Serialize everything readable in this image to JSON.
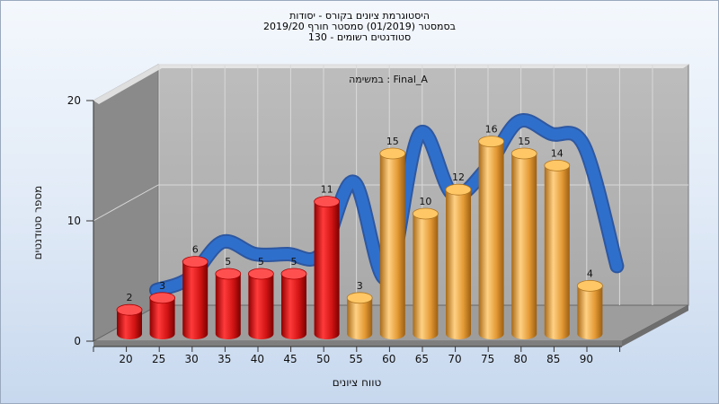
{
  "title_lines": [
    "היסטוגרמת ציונים בקורס - יסודות",
    "בסמסטר  (01/2019)  סמסטר חורף 2019/20",
    "סטודנטים רשומים - 130"
  ],
  "chart_data": {
    "type": "bar",
    "title": "היסטוגרמת ציונים בקורס - יסודות",
    "annotation": "במשימה : Final_A",
    "xlabel": "טווח ציונים",
    "ylabel": "מספר סטודנטים",
    "categories": [
      "20",
      "25",
      "30",
      "35",
      "40",
      "45",
      "50",
      "55",
      "60",
      "65",
      "70",
      "75",
      "80",
      "85",
      "90"
    ],
    "values": [
      2,
      3,
      6,
      5,
      5,
      5,
      11,
      3,
      15,
      10,
      12,
      16,
      15,
      14,
      4
    ],
    "bar_colors": [
      "#d81818",
      "#d81818",
      "#d81818",
      "#d81818",
      "#d81818",
      "#d81818",
      "#d81818",
      "#e9a441",
      "#e9a441",
      "#e9a441",
      "#e9a441",
      "#e9a441",
      "#e9a441",
      "#e9a441",
      "#e9a441"
    ],
    "trend_color": "#2f6fcc",
    "y_ticks": [
      0,
      10,
      20
    ],
    "ylim": [
      0,
      20
    ],
    "grid": true,
    "legend": "none"
  }
}
